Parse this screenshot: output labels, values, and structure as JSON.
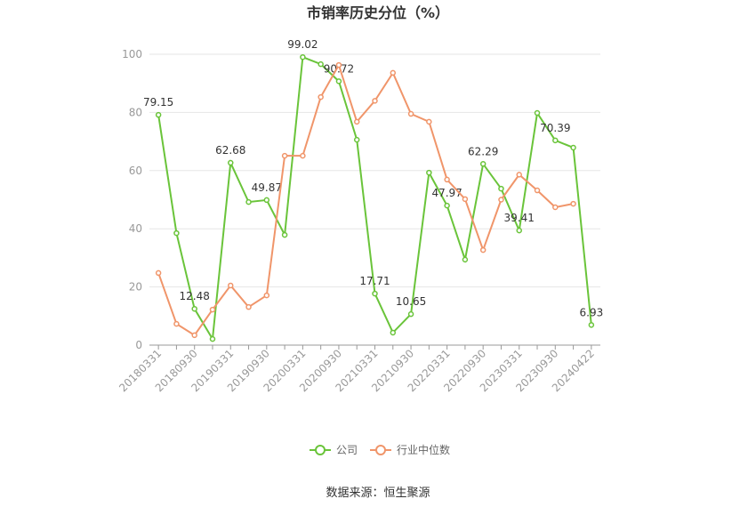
{
  "chart_data": {
    "type": "line",
    "title": "市销率历史分位（%）",
    "source": "数据来源：恒生聚源",
    "categories": [
      "20180331",
      null,
      "20180930",
      null,
      "20190331",
      null,
      "20190930",
      null,
      "20200331",
      null,
      "20200930",
      null,
      "20210331",
      null,
      "20210930",
      null,
      "20220331",
      null,
      "20220930",
      null,
      "20230331",
      null,
      "20230930",
      null,
      "20240422"
    ],
    "series": [
      {
        "name": "公司",
        "color": "#6ac43a",
        "values": [
          79.15,
          38.5,
          12.48,
          2.1,
          62.68,
          49.2,
          49.87,
          37.9,
          99.02,
          96.6,
          90.72,
          70.6,
          17.71,
          4.3,
          10.65,
          59.3,
          47.97,
          29.4,
          62.29,
          53.8,
          39.41,
          79.8,
          70.39,
          67.9,
          6.93
        ]
      },
      {
        "name": "行业中位数",
        "color": "#f0956a",
        "values": [
          24.8,
          7.3,
          3.4,
          12.2,
          20.5,
          13.1,
          17.1,
          65.1,
          65.1,
          85.3,
          96.3,
          76.8,
          84,
          93.6,
          79.5,
          76.8,
          56.9,
          50.2,
          32.7,
          50,
          58.6,
          53.2,
          47.4,
          48.6,
          null
        ]
      }
    ],
    "ylim": [
      0,
      100
    ],
    "yticks": [
      0,
      20,
      40,
      60,
      80,
      100
    ],
    "grid": true,
    "legend": "bottom"
  }
}
